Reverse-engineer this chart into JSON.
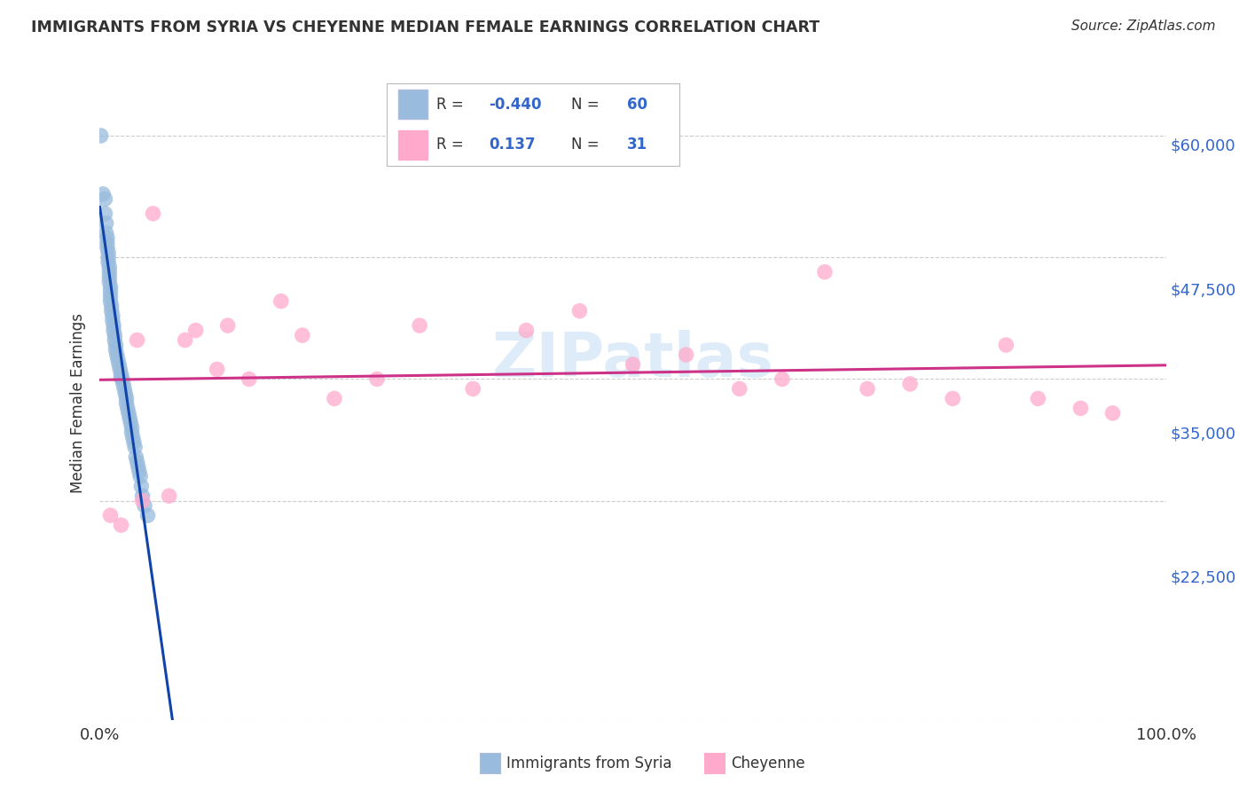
{
  "title": "IMMIGRANTS FROM SYRIA VS CHEYENNE MEDIAN FEMALE EARNINGS CORRELATION CHART",
  "source": "Source: ZipAtlas.com",
  "ylabel": "Median Female Earnings",
  "yticks": [
    0,
    22500,
    35000,
    47500,
    60000
  ],
  "ytick_labels_right": [
    "$22,500",
    "$35,000",
    "$47,500",
    "$60,000"
  ],
  "ylim": [
    10000,
    65000
  ],
  "xlim": [
    0.0,
    100.0
  ],
  "xtick_labels": [
    "0.0%",
    "100.0%"
  ],
  "legend_r1": "-0.440",
  "legend_n1": "60",
  "legend_r2": "0.137",
  "legend_n2": "31",
  "blue_fill": "#99BBDD",
  "blue_edge": "#99BBDD",
  "pink_fill": "#FFAACC",
  "pink_edge": "#FFAACC",
  "blue_line_color": "#1144AA",
  "pink_line_color": "#CC3388",
  "text_color": "#333333",
  "accent_color": "#3366CC",
  "grid_color": "#CCCCCC",
  "watermark_color": "#AACCEE",
  "watermark_text": "ZIPatlas",
  "blue_x": [
    0.1,
    0.3,
    0.5,
    0.5,
    0.6,
    0.6,
    0.7,
    0.7,
    0.7,
    0.8,
    0.8,
    0.8,
    0.9,
    0.9,
    0.9,
    0.9,
    1.0,
    1.0,
    1.0,
    1.0,
    1.1,
    1.1,
    1.2,
    1.2,
    1.3,
    1.3,
    1.4,
    1.4,
    1.5,
    1.5,
    1.6,
    1.7,
    1.8,
    1.9,
    2.0,
    2.0,
    2.1,
    2.2,
    2.3,
    2.4,
    2.5,
    2.5,
    2.6,
    2.7,
    2.8,
    2.9,
    3.0,
    3.0,
    3.1,
    3.2,
    3.3,
    3.4,
    3.5,
    3.6,
    3.7,
    3.8,
    3.9,
    4.0,
    4.2,
    4.5
  ],
  "blue_y": [
    60000,
    54000,
    53500,
    52000,
    51000,
    50000,
    49500,
    49000,
    48500,
    48000,
    47500,
    47000,
    46500,
    46000,
    45500,
    45000,
    44500,
    44000,
    43500,
    43000,
    42500,
    42000,
    41500,
    41000,
    40500,
    40000,
    39500,
    39000,
    38500,
    38000,
    37500,
    37000,
    36500,
    36000,
    35500,
    35200,
    35000,
    34500,
    34000,
    33500,
    33000,
    32500,
    32000,
    31500,
    31000,
    30500,
    30000,
    29500,
    29000,
    28500,
    28000,
    27000,
    26500,
    26000,
    25500,
    25000,
    24000,
    23000,
    22000,
    21000
  ],
  "pink_x": [
    1.0,
    2.0,
    3.5,
    4.0,
    5.0,
    6.5,
    8.0,
    9.0,
    11.0,
    12.0,
    14.0,
    17.0,
    19.0,
    22.0,
    26.0,
    30.0,
    35.0,
    40.0,
    45.0,
    50.0,
    55.0,
    60.0,
    64.0,
    68.0,
    72.0,
    76.0,
    80.0,
    85.0,
    88.0,
    92.0,
    95.0
  ],
  "pink_y": [
    21000,
    20000,
    39000,
    22500,
    52000,
    23000,
    39000,
    40000,
    36000,
    40500,
    35000,
    43000,
    39500,
    33000,
    35000,
    40500,
    34000,
    40000,
    42000,
    36500,
    37500,
    34000,
    35000,
    46000,
    34000,
    34500,
    33000,
    38500,
    33000,
    32000,
    31500
  ]
}
